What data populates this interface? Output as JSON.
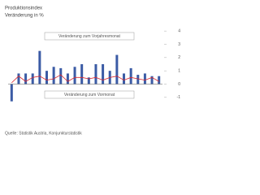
{
  "chart_data": {
    "type": "bar-line",
    "title": "Produktionsindex",
    "subtitle": "Veränderung in %",
    "source": "Quelle: Statistik Austria, Konjunkturstatistik",
    "categories": [
      null,
      null,
      null,
      null,
      null,
      null,
      null,
      null,
      null,
      null,
      null,
      null,
      null,
      null,
      null,
      null,
      null,
      null,
      null,
      null,
      null,
      null
    ],
    "series": [
      {
        "name": "Veränderung zum Vorjahresmonat",
        "type": "bar",
        "color": "#3b5ba5",
        "values": [
          -1.3,
          0.8,
          0.8,
          0.8,
          2.5,
          1.0,
          1.3,
          1.2,
          0.8,
          1.3,
          1.5,
          0.5,
          1.5,
          1.5,
          1.0,
          2.2,
          0.8,
          1.2,
          0.7,
          0.8,
          0.6,
          0.6
        ]
      },
      {
        "name": "Veränderung zum Vormonat",
        "type": "line",
        "color": "#d9262e",
        "values": [
          0.1,
          0.6,
          0.2,
          0.5,
          0.6,
          0.3,
          0.4,
          0.7,
          0.2,
          0.5,
          0.5,
          0.4,
          0.5,
          0.3,
          0.5,
          0.6,
          0.3,
          0.5,
          0.4,
          0.3,
          0.5,
          0.2
        ]
      }
    ],
    "ylim": [
      -1.5,
      4.5
    ],
    "yticks": [
      -1,
      0,
      1,
      2,
      3,
      4
    ],
    "grid": false
  }
}
